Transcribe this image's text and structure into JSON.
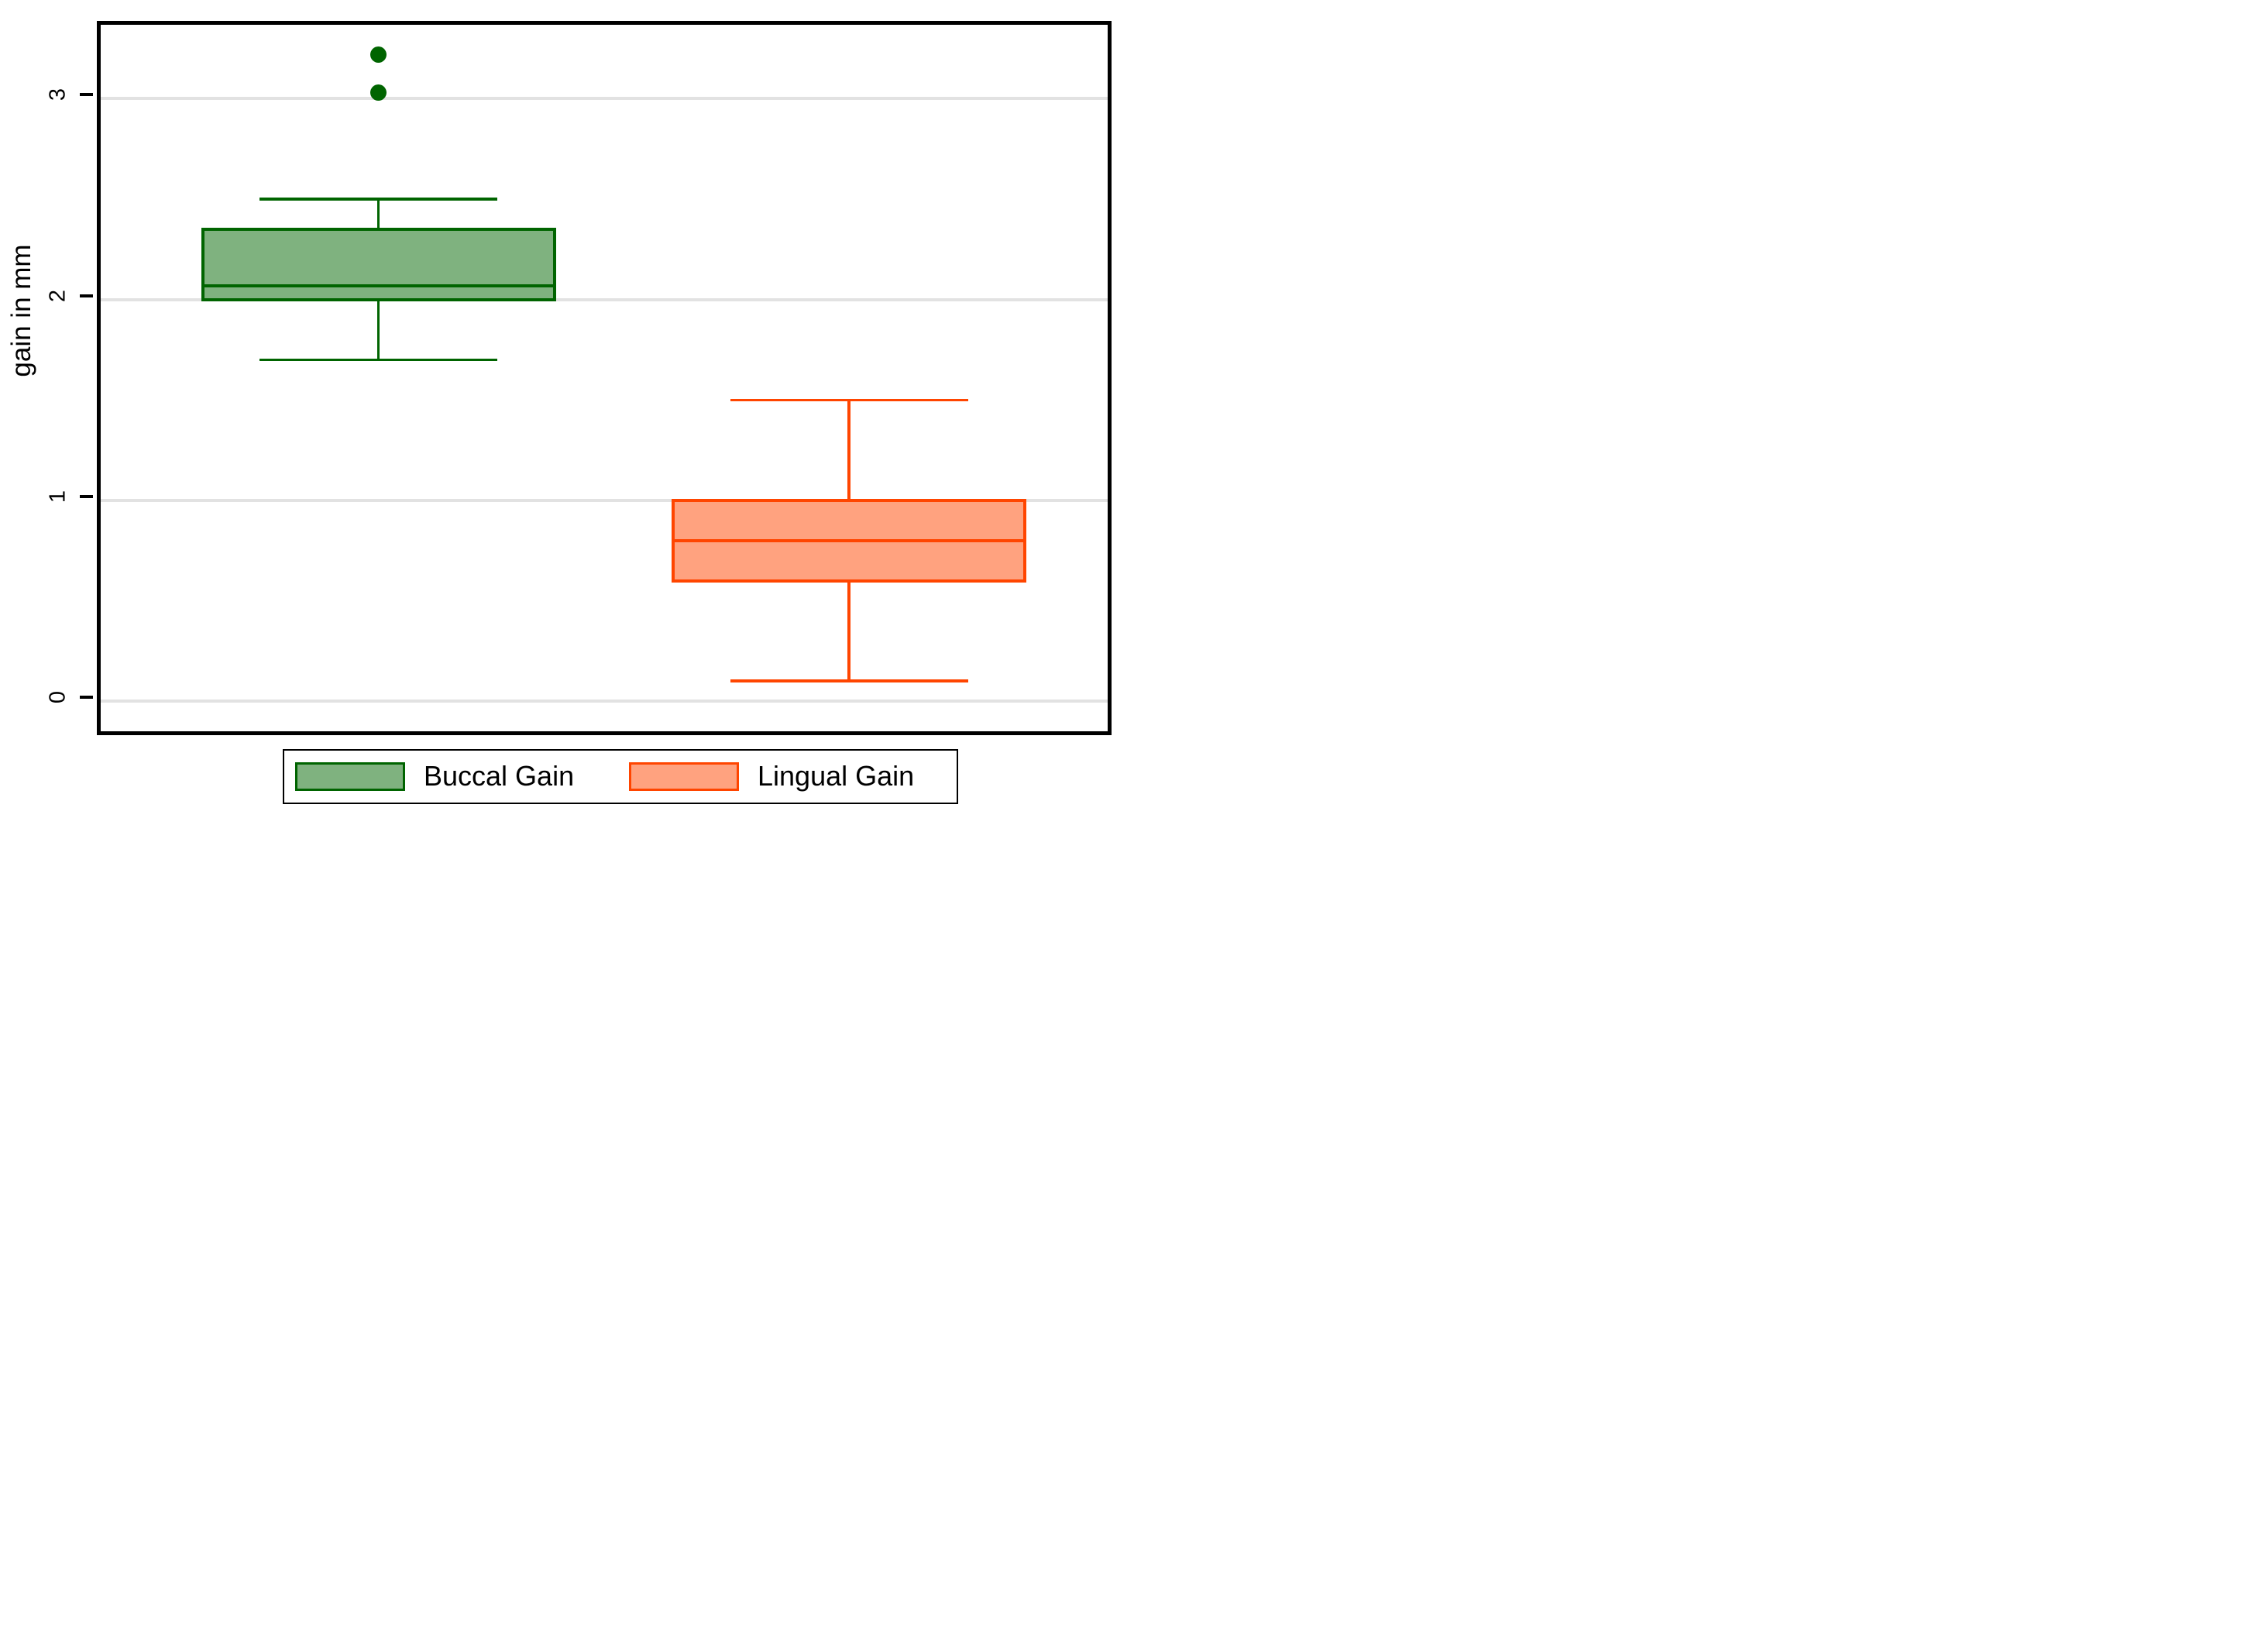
{
  "chart_data": {
    "type": "box",
    "title": "",
    "xlabel": "",
    "ylabel": "gain in mm",
    "ylim": [
      -0.15,
      3.37
    ],
    "yticks": [
      0,
      1,
      2,
      3
    ],
    "grid": true,
    "legend_position": "bottom",
    "legend": [
      "Buccal Gain",
      "Lingual Gain"
    ],
    "series": [
      {
        "name": "Buccal Gain",
        "whisker_low": 1.7,
        "q1": 2.0,
        "median": 2.07,
        "q3": 2.35,
        "whisker_high": 2.5,
        "outliers": [
          3.03,
          3.22
        ],
        "border_color": "#006400",
        "fill_color": "#7FB27F"
      },
      {
        "name": "Lingual Gain",
        "whisker_low": 0.1,
        "q1": 0.6,
        "median": 0.8,
        "q3": 1.0,
        "whisker_high": 1.5,
        "outliers": [],
        "border_color": "#FF4500",
        "fill_color": "#FFA27F"
      }
    ],
    "colors": {
      "frame": "#000000",
      "gridline": "#E2E2E2",
      "background": "#FFFFFF"
    }
  }
}
